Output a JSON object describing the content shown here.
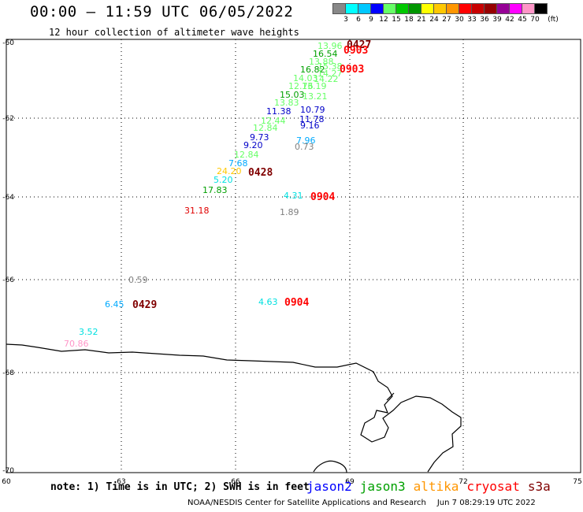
{
  "header": {
    "title": "00:00 – 11:59 UTC 06/05/2022",
    "subtitle": "12 hour collection of altimeter wave heights"
  },
  "colorbar": {
    "unit": "(ft)",
    "levels": [
      "3",
      "6",
      "9",
      "12",
      "15",
      "18",
      "21",
      "24",
      "27",
      "30",
      "33",
      "36",
      "39",
      "42",
      "45",
      "70"
    ],
    "colors": [
      "#888888",
      "#00ffff",
      "#00c8ff",
      "#0000ff",
      "#66ff66",
      "#00c800",
      "#009600",
      "#ffff00",
      "#ffc800",
      "#ff9600",
      "#ff0000",
      "#c80000",
      "#960000",
      "#960096",
      "#ff00ff",
      "#ff96c8",
      "#000000"
    ]
  },
  "axes": {
    "x_ticks": [
      "60",
      "63",
      "66",
      "69",
      "72",
      "75"
    ],
    "y_ticks": [
      "-60",
      "-62",
      "-64",
      "-66",
      "-68",
      "-70"
    ]
  },
  "observations": [
    {
      "value": "13.96",
      "color": "#66ff66"
    },
    {
      "value": "16.54",
      "color": "#00a000"
    },
    {
      "value": "13.88",
      "color": "#66ff66"
    },
    {
      "value": "15.38",
      "color": "#66ff66"
    },
    {
      "value": "16.82",
      "color": "#00a000"
    },
    {
      "value": "14.27",
      "color": "#66ff66"
    },
    {
      "value": "14.03",
      "color": "#66ff66"
    },
    {
      "value": "14.22",
      "color": "#66ff66"
    },
    {
      "value": "12.76",
      "color": "#66ff66"
    },
    {
      "value": "13.19",
      "color": "#66ff66"
    },
    {
      "value": "15.03",
      "color": "#00a000"
    },
    {
      "value": "13.21",
      "color": "#66ff66"
    },
    {
      "value": "13.83",
      "color": "#66ff66"
    },
    {
      "value": "11.38",
      "color": "#0000c8"
    },
    {
      "value": "10.79",
      "color": "#0000c8"
    },
    {
      "value": "12.44",
      "color": "#66ff66"
    },
    {
      "value": "11.78",
      "color": "#0000c8"
    },
    {
      "value": "9.16",
      "color": "#0000c8"
    },
    {
      "value": "12.84",
      "color": "#66ff66"
    },
    {
      "value": "9.73",
      "color": "#0000c8"
    },
    {
      "value": "7.96",
      "color": "#00aaff"
    },
    {
      "value": "9.20",
      "color": "#0000c8"
    },
    {
      "value": "0.73",
      "color": "#808080"
    },
    {
      "value": "12.84",
      "color": "#66ff66"
    },
    {
      "value": "7.68",
      "color": "#00aaff"
    },
    {
      "value": "24.20",
      "color": "#ffc800"
    },
    {
      "value": "5.20",
      "color": "#00e0e0"
    },
    {
      "value": "17.83",
      "color": "#00a000"
    },
    {
      "value": "4.31",
      "color": "#00e0e0"
    },
    {
      "value": "31.18",
      "color": "#e00000"
    },
    {
      "value": "1.89",
      "color": "#808080"
    },
    {
      "value": "0.59",
      "color": "#808080"
    },
    {
      "value": "6.45",
      "color": "#00aaff"
    },
    {
      "value": "4.63",
      "color": "#00e0e0"
    },
    {
      "value": "3.52",
      "color": "#00e0e0"
    },
    {
      "value": "70.86",
      "color": "#ff96c8"
    }
  ],
  "pass_labels": [
    {
      "time": "0427",
      "color": "#800000"
    },
    {
      "time": "0903",
      "color": "#ff0000"
    },
    {
      "time": "0903",
      "color": "#ff0000"
    },
    {
      "time": "0428",
      "color": "#800000"
    },
    {
      "time": "0904",
      "color": "#ff0000"
    },
    {
      "time": "0429",
      "color": "#800000"
    },
    {
      "time": "0904",
      "color": "#ff0000"
    }
  ],
  "footer": {
    "note": "note: 1) Time is in UTC; 2) SWH is in feet",
    "legend": [
      {
        "label": "jason2",
        "color": "#0000ff"
      },
      {
        "label": "jason3",
        "color": "#00a000"
      },
      {
        "label": "altika",
        "color": "#ff9600"
      },
      {
        "label": "cryosat",
        "color": "#ff0000"
      },
      {
        "label": "s3a",
        "color": "#800000"
      }
    ],
    "credit": "NOAA/NESDIS Center for Satellite Applications and Research",
    "timestamp": "Jun  7 08:29:19 UTC 2022"
  }
}
